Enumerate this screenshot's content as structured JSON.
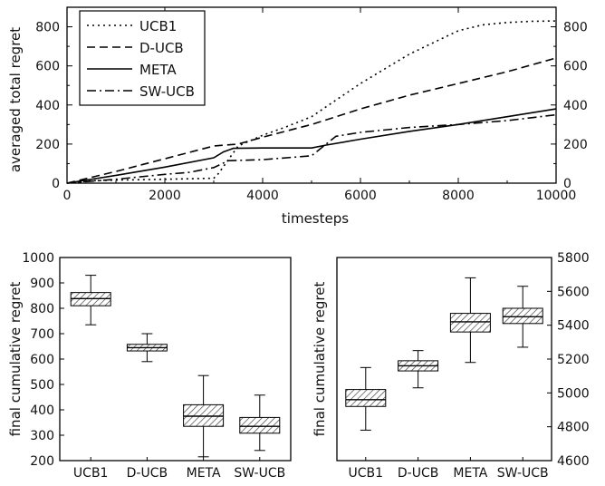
{
  "chart_data": [
    {
      "type": "line",
      "xlabel": "timesteps",
      "ylabel": "averaged total regret",
      "xlim": [
        0,
        10000
      ],
      "ylim": [
        0,
        900
      ],
      "xticks": [
        0,
        2000,
        4000,
        6000,
        8000,
        10000
      ],
      "yticks": [
        0,
        200,
        400,
        600,
        800
      ],
      "right_yticks": [
        0,
        200,
        400,
        600,
        800
      ],
      "legend_placement": "top-left",
      "series": [
        {
          "name": "UCB1",
          "dash": "dotted",
          "points": [
            [
              0,
              0
            ],
            [
              500,
              12
            ],
            [
              1000,
              16
            ],
            [
              2000,
              20
            ],
            [
              3000,
              25
            ],
            [
              3100,
              50
            ],
            [
              3300,
              120
            ],
            [
              3500,
              190
            ],
            [
              4000,
              245
            ],
            [
              4500,
              290
            ],
            [
              5000,
              340
            ],
            [
              6000,
              510
            ],
            [
              7000,
              660
            ],
            [
              8000,
              780
            ],
            [
              8500,
              810
            ],
            [
              9000,
              822
            ],
            [
              9500,
              828
            ],
            [
              10000,
              830
            ]
          ]
        },
        {
          "name": "D-UCB",
          "dash": "dashed",
          "points": [
            [
              0,
              0
            ],
            [
              1000,
              60
            ],
            [
              2000,
              125
            ],
            [
              3000,
              190
            ],
            [
              3500,
              200
            ],
            [
              4000,
              235
            ],
            [
              5000,
              300
            ],
            [
              6000,
              380
            ],
            [
              7000,
              450
            ],
            [
              8000,
              510
            ],
            [
              9000,
              570
            ],
            [
              10000,
              640
            ]
          ]
        },
        {
          "name": "META",
          "dash": "solid",
          "points": [
            [
              0,
              0
            ],
            [
              1000,
              40
            ],
            [
              2000,
              82
            ],
            [
              3000,
              130
            ],
            [
              3200,
              160
            ],
            [
              3400,
              178
            ],
            [
              4000,
              180
            ],
            [
              5000,
              180
            ],
            [
              5300,
              195
            ],
            [
              6000,
              225
            ],
            [
              7000,
              265
            ],
            [
              8000,
              300
            ],
            [
              9000,
              340
            ],
            [
              10000,
              380
            ]
          ]
        },
        {
          "name": "SW-UCB",
          "dash": "dashdot",
          "points": [
            [
              0,
              0
            ],
            [
              1000,
              20
            ],
            [
              2000,
              45
            ],
            [
              2500,
              55
            ],
            [
              3000,
              80
            ],
            [
              3300,
              115
            ],
            [
              4000,
              120
            ],
            [
              5000,
              140
            ],
            [
              5500,
              240
            ],
            [
              6000,
              260
            ],
            [
              7000,
              285
            ],
            [
              8000,
              300
            ],
            [
              9000,
              320
            ],
            [
              10000,
              350
            ]
          ]
        }
      ]
    },
    {
      "type": "box",
      "ylabel": "final cumulative regret",
      "categories": [
        "UCB1",
        "D-UCB",
        "META",
        "SW-UCB"
      ],
      "ylim": [
        200,
        1000
      ],
      "yticks": [
        200,
        300,
        400,
        500,
        600,
        700,
        800,
        900,
        1000
      ],
      "axis_side": "left",
      "boxes": [
        {
          "whisker_low": 735,
          "q1": 810,
          "median": 838,
          "q3": 862,
          "whisker_high": 930
        },
        {
          "whisker_low": 590,
          "q1": 632,
          "median": 645,
          "q3": 658,
          "whisker_high": 700
        },
        {
          "whisker_low": 215,
          "q1": 335,
          "median": 375,
          "q3": 420,
          "whisker_high": 535
        },
        {
          "whisker_low": 240,
          "q1": 308,
          "median": 335,
          "q3": 370,
          "whisker_high": 458
        }
      ]
    },
    {
      "type": "box",
      "ylabel": "final cumulative regret",
      "categories": [
        "UCB1",
        "D-UCB",
        "META",
        "SW-UCB"
      ],
      "ylim": [
        4600,
        5800
      ],
      "yticks": [
        4600,
        4800,
        5000,
        5200,
        5400,
        5600,
        5800
      ],
      "axis_side": "right",
      "boxes": [
        {
          "whisker_low": 4780,
          "q1": 4920,
          "median": 4960,
          "q3": 5020,
          "whisker_high": 5150
        },
        {
          "whisker_low": 5030,
          "q1": 5130,
          "median": 5160,
          "q3": 5190,
          "whisker_high": 5250
        },
        {
          "whisker_low": 5180,
          "q1": 5360,
          "median": 5420,
          "q3": 5470,
          "whisker_high": 5680
        },
        {
          "whisker_low": 5270,
          "q1": 5410,
          "median": 5450,
          "q3": 5500,
          "whisker_high": 5630
        }
      ]
    }
  ]
}
